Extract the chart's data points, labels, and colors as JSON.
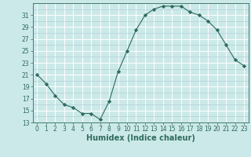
{
  "x": [
    0,
    1,
    2,
    3,
    4,
    5,
    6,
    7,
    8,
    9,
    10,
    11,
    12,
    13,
    14,
    15,
    16,
    17,
    18,
    19,
    20,
    21,
    22,
    23
  ],
  "y": [
    21,
    19.5,
    17.5,
    16,
    15.5,
    14.5,
    14.5,
    13.5,
    16.5,
    21.5,
    25,
    28.5,
    31,
    32,
    32.5,
    32.5,
    32.5,
    31.5,
    31,
    30,
    28.5,
    26,
    23.5,
    22.5
  ],
  "line_color": "#2e6b5e",
  "marker": "D",
  "marker_size": 2.2,
  "bg_color": "#cce9e9",
  "grid_major_color": "#aacccc",
  "grid_white_color": "#ffffff",
  "xlabel": "Humidex (Indice chaleur)",
  "xlim": [
    -0.5,
    23.5
  ],
  "ylim": [
    13,
    33
  ],
  "yticks": [
    13,
    15,
    17,
    19,
    21,
    23,
    25,
    27,
    29,
    31
  ],
  "xticks": [
    0,
    1,
    2,
    3,
    4,
    5,
    6,
    7,
    8,
    9,
    10,
    11,
    12,
    13,
    14,
    15,
    16,
    17,
    18,
    19,
    20,
    21,
    22,
    23
  ],
  "tick_fontsize": 5.5,
  "label_fontsize": 7.0
}
